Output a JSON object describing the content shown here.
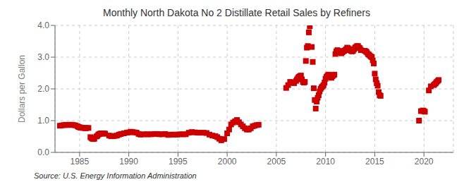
{
  "chart_data": {
    "type": "scatter",
    "title": "Monthly North Dakota No 2 Distillate Retail Sales by Refiners",
    "ylabel": "Dollars per Gallon",
    "annotations": [
      "Source: U.S. Energy Information Administration"
    ],
    "color": "#cc0000",
    "marker": "square",
    "grid": true,
    "xlim": [
      1982.5,
      2023.0
    ],
    "xticks": [
      1985,
      1990,
      1995,
      2000,
      2005,
      2010,
      2015,
      2020
    ],
    "ylim": [
      0.0,
      4.0
    ],
    "yticks": [
      {
        "value": 0.0,
        "label": "0.0"
      },
      {
        "value": 1.0,
        "label": "1.0"
      },
      {
        "value": 2.0,
        "label": "2.0"
      },
      {
        "value": 3.0,
        "label": "3.0"
      },
      {
        "value": 4.0,
        "label": "4.0"
      }
    ],
    "x": [
      1983.0,
      1983.2,
      1983.4,
      1983.6,
      1983.8,
      1984.0,
      1984.2,
      1984.4,
      1984.6,
      1984.8,
      1984.9,
      1985.0,
      1985.1,
      1985.2,
      1985.3,
      1985.5,
      1985.6,
      1985.7,
      1985.9,
      1986.1,
      1986.2,
      1986.3,
      1986.4,
      1986.5,
      1986.7,
      1986.8,
      1986.9,
      1987.0,
      1987.1,
      1987.2,
      1987.4,
      1987.5,
      1987.6,
      1988.0,
      1988.2,
      1988.4,
      1988.6,
      1988.8,
      1989.0,
      1989.2,
      1989.5,
      1989.8,
      1990.0,
      1990.2,
      1990.4,
      1990.6,
      1990.8,
      1991.0,
      1991.2,
      1991.5,
      1991.8,
      1992.0,
      1992.3,
      1992.6,
      1992.9,
      1993.1,
      1993.4,
      1993.7,
      1994.0,
      1994.3,
      1994.6,
      1994.9,
      1995.2,
      1995.5,
      1995.8,
      1996.1,
      1996.4,
      1996.7,
      1997.0,
      1997.3,
      1997.6,
      1997.9,
      1998.2,
      1998.5,
      1998.8,
      1999.0,
      1999.2,
      1999.4,
      1999.7,
      2000.0,
      2000.2,
      2000.4,
      2000.6,
      2000.8,
      2001.0,
      2001.2,
      2001.4,
      2001.6,
      2001.8,
      2002.0,
      2002.2,
      2002.4,
      2002.6,
      2002.8,
      2003.0,
      2003.2,
      2006.0,
      2006.2,
      2006.4,
      2006.6,
      2006.8,
      2007.0,
      2007.1,
      2007.2,
      2007.3,
      2007.4,
      2007.5,
      2007.6,
      2007.7,
      2007.8,
      2007.9,
      2008.0,
      2008.1,
      2008.2,
      2008.3,
      2008.4,
      2008.6,
      2008.7,
      2008.8,
      2008.9,
      2009.0,
      2009.1,
      2009.2,
      2009.3,
      2009.4,
      2009.5,
      2009.6,
      2009.7,
      2009.8,
      2009.9,
      2010.0,
      2010.1,
      2010.2,
      2010.3,
      2010.4,
      2010.5,
      2010.6,
      2010.7,
      2010.8,
      2010.9,
      2011.0,
      2011.1,
      2011.2,
      2011.3,
      2011.4,
      2011.5,
      2011.6,
      2011.7,
      2011.8,
      2011.9,
      2012.0,
      2012.1,
      2012.2,
      2012.3,
      2012.4,
      2012.5,
      2012.6,
      2012.7,
      2012.8,
      2012.9,
      2013.0,
      2013.1,
      2013.2,
      2013.3,
      2013.4,
      2013.5,
      2013.6,
      2014.0,
      2014.1,
      2014.2,
      2014.3,
      2014.4,
      2014.5,
      2014.6,
      2014.7,
      2014.8,
      2014.9,
      2015.0,
      2015.1,
      2015.2,
      2015.3,
      2015.4,
      2015.5,
      2015.6,
      2019.5,
      2019.7,
      2019.9,
      2020.0,
      2020.1,
      2020.5,
      2020.7,
      2021.0,
      2021.1,
      2021.2,
      2021.3,
      2021.4,
      2021.5
    ],
    "values": [
      0.84,
      0.85,
      0.86,
      0.87,
      0.86,
      0.87,
      0.87,
      0.86,
      0.85,
      0.82,
      0.8,
      0.79,
      0.78,
      0.78,
      0.77,
      0.77,
      0.76,
      0.77,
      0.77,
      0.48,
      0.45,
      0.43,
      0.42,
      0.43,
      0.5,
      0.52,
      0.56,
      0.58,
      0.59,
      0.6,
      0.6,
      0.59,
      0.59,
      0.53,
      0.51,
      0.51,
      0.52,
      0.53,
      0.56,
      0.58,
      0.6,
      0.62,
      0.63,
      0.65,
      0.64,
      0.63,
      0.62,
      0.58,
      0.56,
      0.57,
      0.57,
      0.57,
      0.57,
      0.58,
      0.58,
      0.57,
      0.57,
      0.58,
      0.55,
      0.56,
      0.56,
      0.56,
      0.57,
      0.57,
      0.57,
      0.62,
      0.64,
      0.63,
      0.62,
      0.62,
      0.62,
      0.61,
      0.56,
      0.53,
      0.51,
      0.48,
      0.43,
      0.38,
      0.42,
      0.6,
      0.72,
      0.88,
      0.94,
      0.98,
      1.02,
      0.95,
      0.88,
      0.82,
      0.76,
      0.72,
      0.72,
      0.76,
      0.82,
      0.84,
      0.86,
      0.87,
      2.03,
      2.12,
      2.22,
      2.2,
      2.18,
      2.25,
      2.3,
      2.35,
      2.38,
      2.4,
      2.42,
      2.3,
      2.22,
      2.2,
      2.22,
      2.88,
      3.3,
      3.35,
      3.78,
      3.97,
      3.32,
      2.85,
      2.02,
      1.65,
      1.38,
      1.6,
      1.72,
      1.8,
      1.92,
      2.0,
      2.05,
      2.08,
      2.12,
      2.2,
      2.32,
      2.38,
      2.42,
      2.45,
      2.4,
      2.38,
      2.35,
      2.4,
      2.43,
      2.45,
      3.1,
      3.18,
      3.22,
      3.2,
      3.18,
      3.15,
      3.12,
      3.15,
      3.18,
      3.2,
      3.22,
      3.25,
      3.3,
      3.28,
      3.25,
      3.22,
      3.2,
      3.18,
      3.2,
      3.25,
      3.3,
      3.32,
      3.35,
      3.35,
      3.3,
      3.28,
      3.22,
      3.2,
      3.18,
      3.15,
      3.1,
      3.08,
      3.05,
      3.02,
      3.0,
      2.9,
      2.8,
      2.48,
      2.3,
      2.18,
      2.1,
      1.9,
      1.8,
      1.78,
      1.0,
      1.3,
      1.32,
      1.3,
      1.28,
      1.95,
      2.08,
      2.12,
      2.15,
      2.18,
      2.22,
      2.25,
      2.28
    ]
  }
}
